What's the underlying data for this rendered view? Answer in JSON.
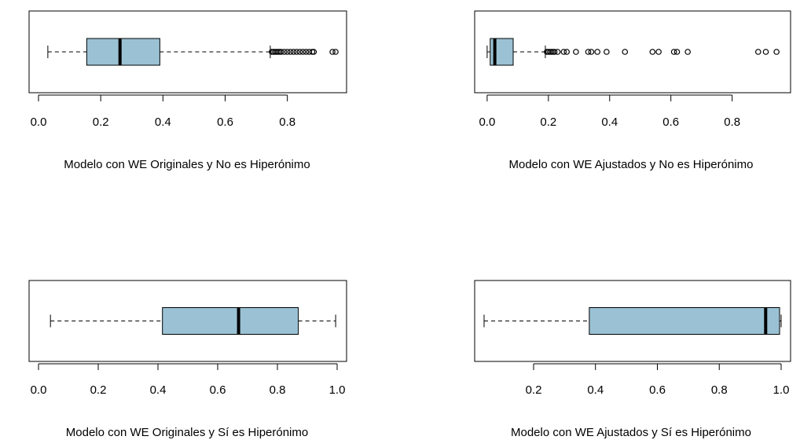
{
  "chart_data": [
    {
      "type": "boxplot",
      "orientation": "horizontal",
      "xlabel": "Modelo con WE Originales y No es Hiperónimo",
      "xlim": [
        0.0,
        0.96
      ],
      "ticks": [
        "0.0",
        "0.2",
        "0.4",
        "0.6",
        "0.8"
      ],
      "tick_values": [
        0.0,
        0.2,
        0.4,
        0.6,
        0.8
      ],
      "box": {
        "whisker_low": 0.03,
        "q1": 0.155,
        "median": 0.262,
        "q3": 0.39,
        "whisker_high": 0.745
      },
      "outliers": [
        0.75,
        0.755,
        0.76,
        0.765,
        0.77,
        0.775,
        0.78,
        0.79,
        0.8,
        0.81,
        0.82,
        0.83,
        0.84,
        0.85,
        0.86,
        0.87,
        0.88,
        0.885,
        0.945,
        0.955
      ],
      "fill": "#9ac2d4"
    },
    {
      "type": "boxplot",
      "orientation": "horizontal",
      "xlabel": "Modelo con WE Ajustados y No es Hiperónimo",
      "xlim": [
        -0.01,
        0.96
      ],
      "ticks": [
        "0.0",
        "0.2",
        "0.4",
        "0.6",
        "0.8"
      ],
      "tick_values": [
        0.0,
        0.2,
        0.4,
        0.6,
        0.8
      ],
      "box": {
        "whisker_low": 0.0,
        "q1": 0.01,
        "median": 0.025,
        "q3": 0.085,
        "whisker_high": 0.19
      },
      "outliers": [
        0.195,
        0.2,
        0.205,
        0.21,
        0.215,
        0.22,
        0.23,
        0.25,
        0.26,
        0.29,
        0.33,
        0.34,
        0.36,
        0.39,
        0.45,
        0.54,
        0.56,
        0.61,
        0.62,
        0.655,
        0.885,
        0.91,
        0.945
      ],
      "fill": "#9ac2d4"
    },
    {
      "type": "boxplot",
      "orientation": "horizontal",
      "xlabel": "Modelo con WE Originales y Sí es Hiperónimo",
      "xlim": [
        0.0,
        1.0
      ],
      "ticks": [
        "0.0",
        "0.2",
        "0.4",
        "0.6",
        "0.8",
        "1.0"
      ],
      "tick_values": [
        0.0,
        0.2,
        0.4,
        0.6,
        0.8,
        1.0
      ],
      "box": {
        "whisker_low": 0.04,
        "q1": 0.415,
        "median": 0.67,
        "q3": 0.87,
        "whisker_high": 0.995
      },
      "outliers": [],
      "fill": "#9ac2d4"
    },
    {
      "type": "boxplot",
      "orientation": "horizontal",
      "xlabel": "Modelo con WE Ajustados y Sí es Hiperónimo",
      "xlim": [
        0.04,
        1.0
      ],
      "ticks": [
        "0.2",
        "0.4",
        "0.6",
        "0.8",
        "1.0"
      ],
      "tick_values": [
        0.2,
        0.4,
        0.6,
        0.8,
        1.0
      ],
      "box": {
        "whisker_low": 0.04,
        "q1": 0.38,
        "median": 0.95,
        "q3": 0.995,
        "whisker_high": 1.0
      },
      "outliers": [],
      "fill": "#9ac2d4"
    }
  ]
}
